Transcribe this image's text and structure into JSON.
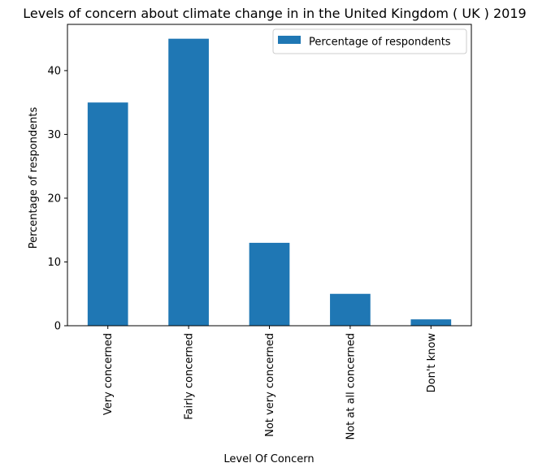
{
  "chart_data": {
    "type": "bar",
    "title": "Levels of concern about climate change in in the United Kingdom ( UK ) 2019",
    "xlabel": "Level Of Concern",
    "ylabel": "Percentage of respondents",
    "categories": [
      "Very concerned",
      "Fairly concerned",
      "Not very concerned",
      "Not at all concerned",
      "Don't know"
    ],
    "series": [
      {
        "name": "Percentage of respondents",
        "values": [
          35,
          45,
          13,
          5,
          1
        ]
      }
    ],
    "ylim": [
      0,
      47.25
    ],
    "yticks": [
      0,
      10,
      20,
      30,
      40
    ],
    "grid": false,
    "legend_position": "top-right",
    "colors": {
      "bar": "#1f77b4"
    }
  }
}
